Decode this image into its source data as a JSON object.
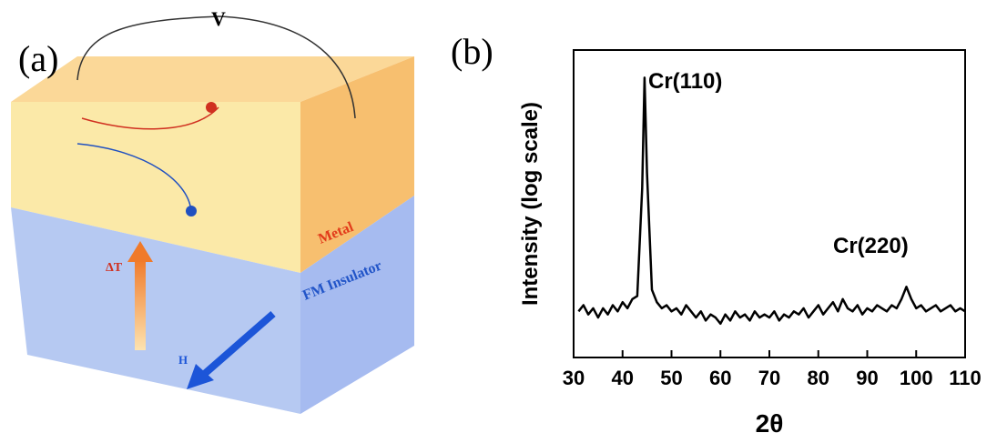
{
  "diagram": {
    "panel_label": "(a)",
    "voltage": "V",
    "metal": "Metal",
    "insulator": "FM Insulator",
    "temperature_gradient": "ΔT",
    "field": "H"
  },
  "chart_data": {
    "type": "line",
    "panel_label": "(b)",
    "y_label": "Intensity (log scale)",
    "x_label": "2θ",
    "annotations": [
      "Cr(110)",
      "Cr(220)"
    ],
    "color": "#000000",
    "x": [
      31,
      32,
      33,
      34,
      35,
      36,
      37,
      38,
      39,
      40,
      41,
      42,
      43,
      44,
      44.5,
      45,
      46,
      47,
      48,
      49,
      50,
      51,
      52,
      53,
      54,
      55,
      56,
      57,
      58,
      59,
      60,
      61,
      62,
      63,
      64,
      65,
      66,
      67,
      68,
      69,
      70,
      71,
      72,
      73,
      74,
      75,
      76,
      77,
      78,
      79,
      80,
      81,
      82,
      83,
      84,
      85,
      86,
      87,
      88,
      89,
      90,
      91,
      92,
      93,
      94,
      95,
      96,
      97,
      98,
      99,
      100,
      101,
      102,
      103,
      104,
      105,
      106,
      107,
      108,
      109,
      110
    ],
    "values": [
      15,
      17,
      14,
      16,
      13,
      16,
      14,
      17,
      15,
      18,
      16,
      19,
      20,
      55,
      91,
      60,
      22,
      18,
      16,
      17,
      15,
      16,
      14,
      17,
      15,
      13,
      15,
      12,
      14,
      13,
      11,
      14,
      12,
      15,
      13,
      14,
      12,
      15,
      13,
      14,
      13,
      15,
      12,
      14,
      13,
      15,
      14,
      16,
      13,
      15,
      17,
      14,
      16,
      18,
      15,
      19,
      16,
      15,
      17,
      14,
      16,
      15,
      17,
      16,
      15,
      17,
      16,
      19,
      23,
      19,
      16,
      17,
      15,
      16,
      17,
      15,
      16,
      17,
      15,
      16,
      15
    ],
    "xlim": [
      30,
      110
    ],
    "ylim": [
      0,
      100
    ],
    "xticks": [
      30,
      40,
      50,
      60,
      70,
      80,
      90,
      100,
      110
    ]
  }
}
